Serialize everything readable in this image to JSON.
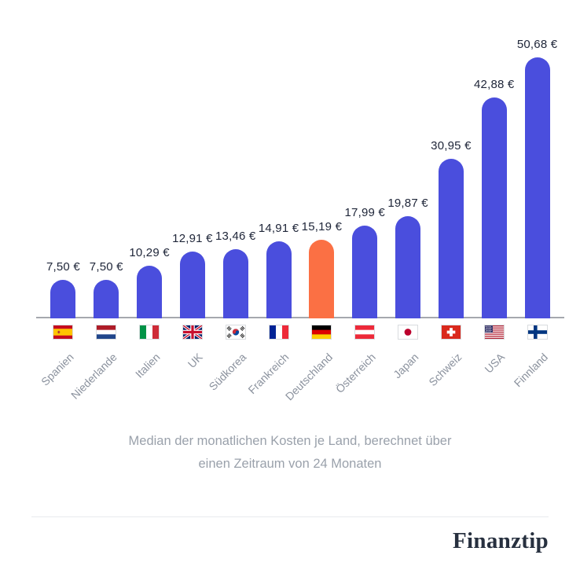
{
  "chart_data": {
    "type": "bar",
    "categories": [
      "Spanien",
      "Niederlande",
      "Italien",
      "UK",
      "Südkorea",
      "Frankreich",
      "Deutschland",
      "Österreich",
      "Japan",
      "Schweiz",
      "USA",
      "Finnland"
    ],
    "values": [
      7.5,
      7.5,
      10.29,
      12.91,
      13.46,
      14.91,
      15.19,
      17.99,
      19.87,
      30.95,
      42.88,
      50.68
    ],
    "value_labels": [
      "7,50 €",
      "7,50 €",
      "10,29 €",
      "12,91 €",
      "13,46 €",
      "14,91 €",
      "15,19 €",
      "17,99 €",
      "19,87 €",
      "30,95 €",
      "42,88 €",
      "50,68 €"
    ],
    "flag_icons": [
      "flag-spain-icon",
      "flag-netherlands-icon",
      "flag-italy-icon",
      "flag-uk-icon",
      "flag-southkorea-icon",
      "flag-france-icon",
      "flag-germany-icon",
      "flag-austria-icon",
      "flag-japan-icon",
      "flag-switzerland-icon",
      "flag-usa-icon",
      "flag-finland-icon"
    ],
    "flag_codes": [
      "es",
      "nl",
      "it",
      "uk",
      "kr",
      "fr",
      "de",
      "at",
      "jp",
      "ch",
      "us",
      "fi"
    ],
    "highlight_index": 6,
    "bar_color": "#4a4edd",
    "highlight_color": "#fb7044",
    "axis_color": "#a5a8ae",
    "ylim": [
      0,
      50.68
    ],
    "grid": false,
    "legend": false,
    "caption_lines": [
      "Median der monatlichen Kosten je Land, berechnet über",
      "einen Zeitraum von 24 Monaten"
    ]
  },
  "footer": {
    "logo_text": "Finanztip"
  }
}
